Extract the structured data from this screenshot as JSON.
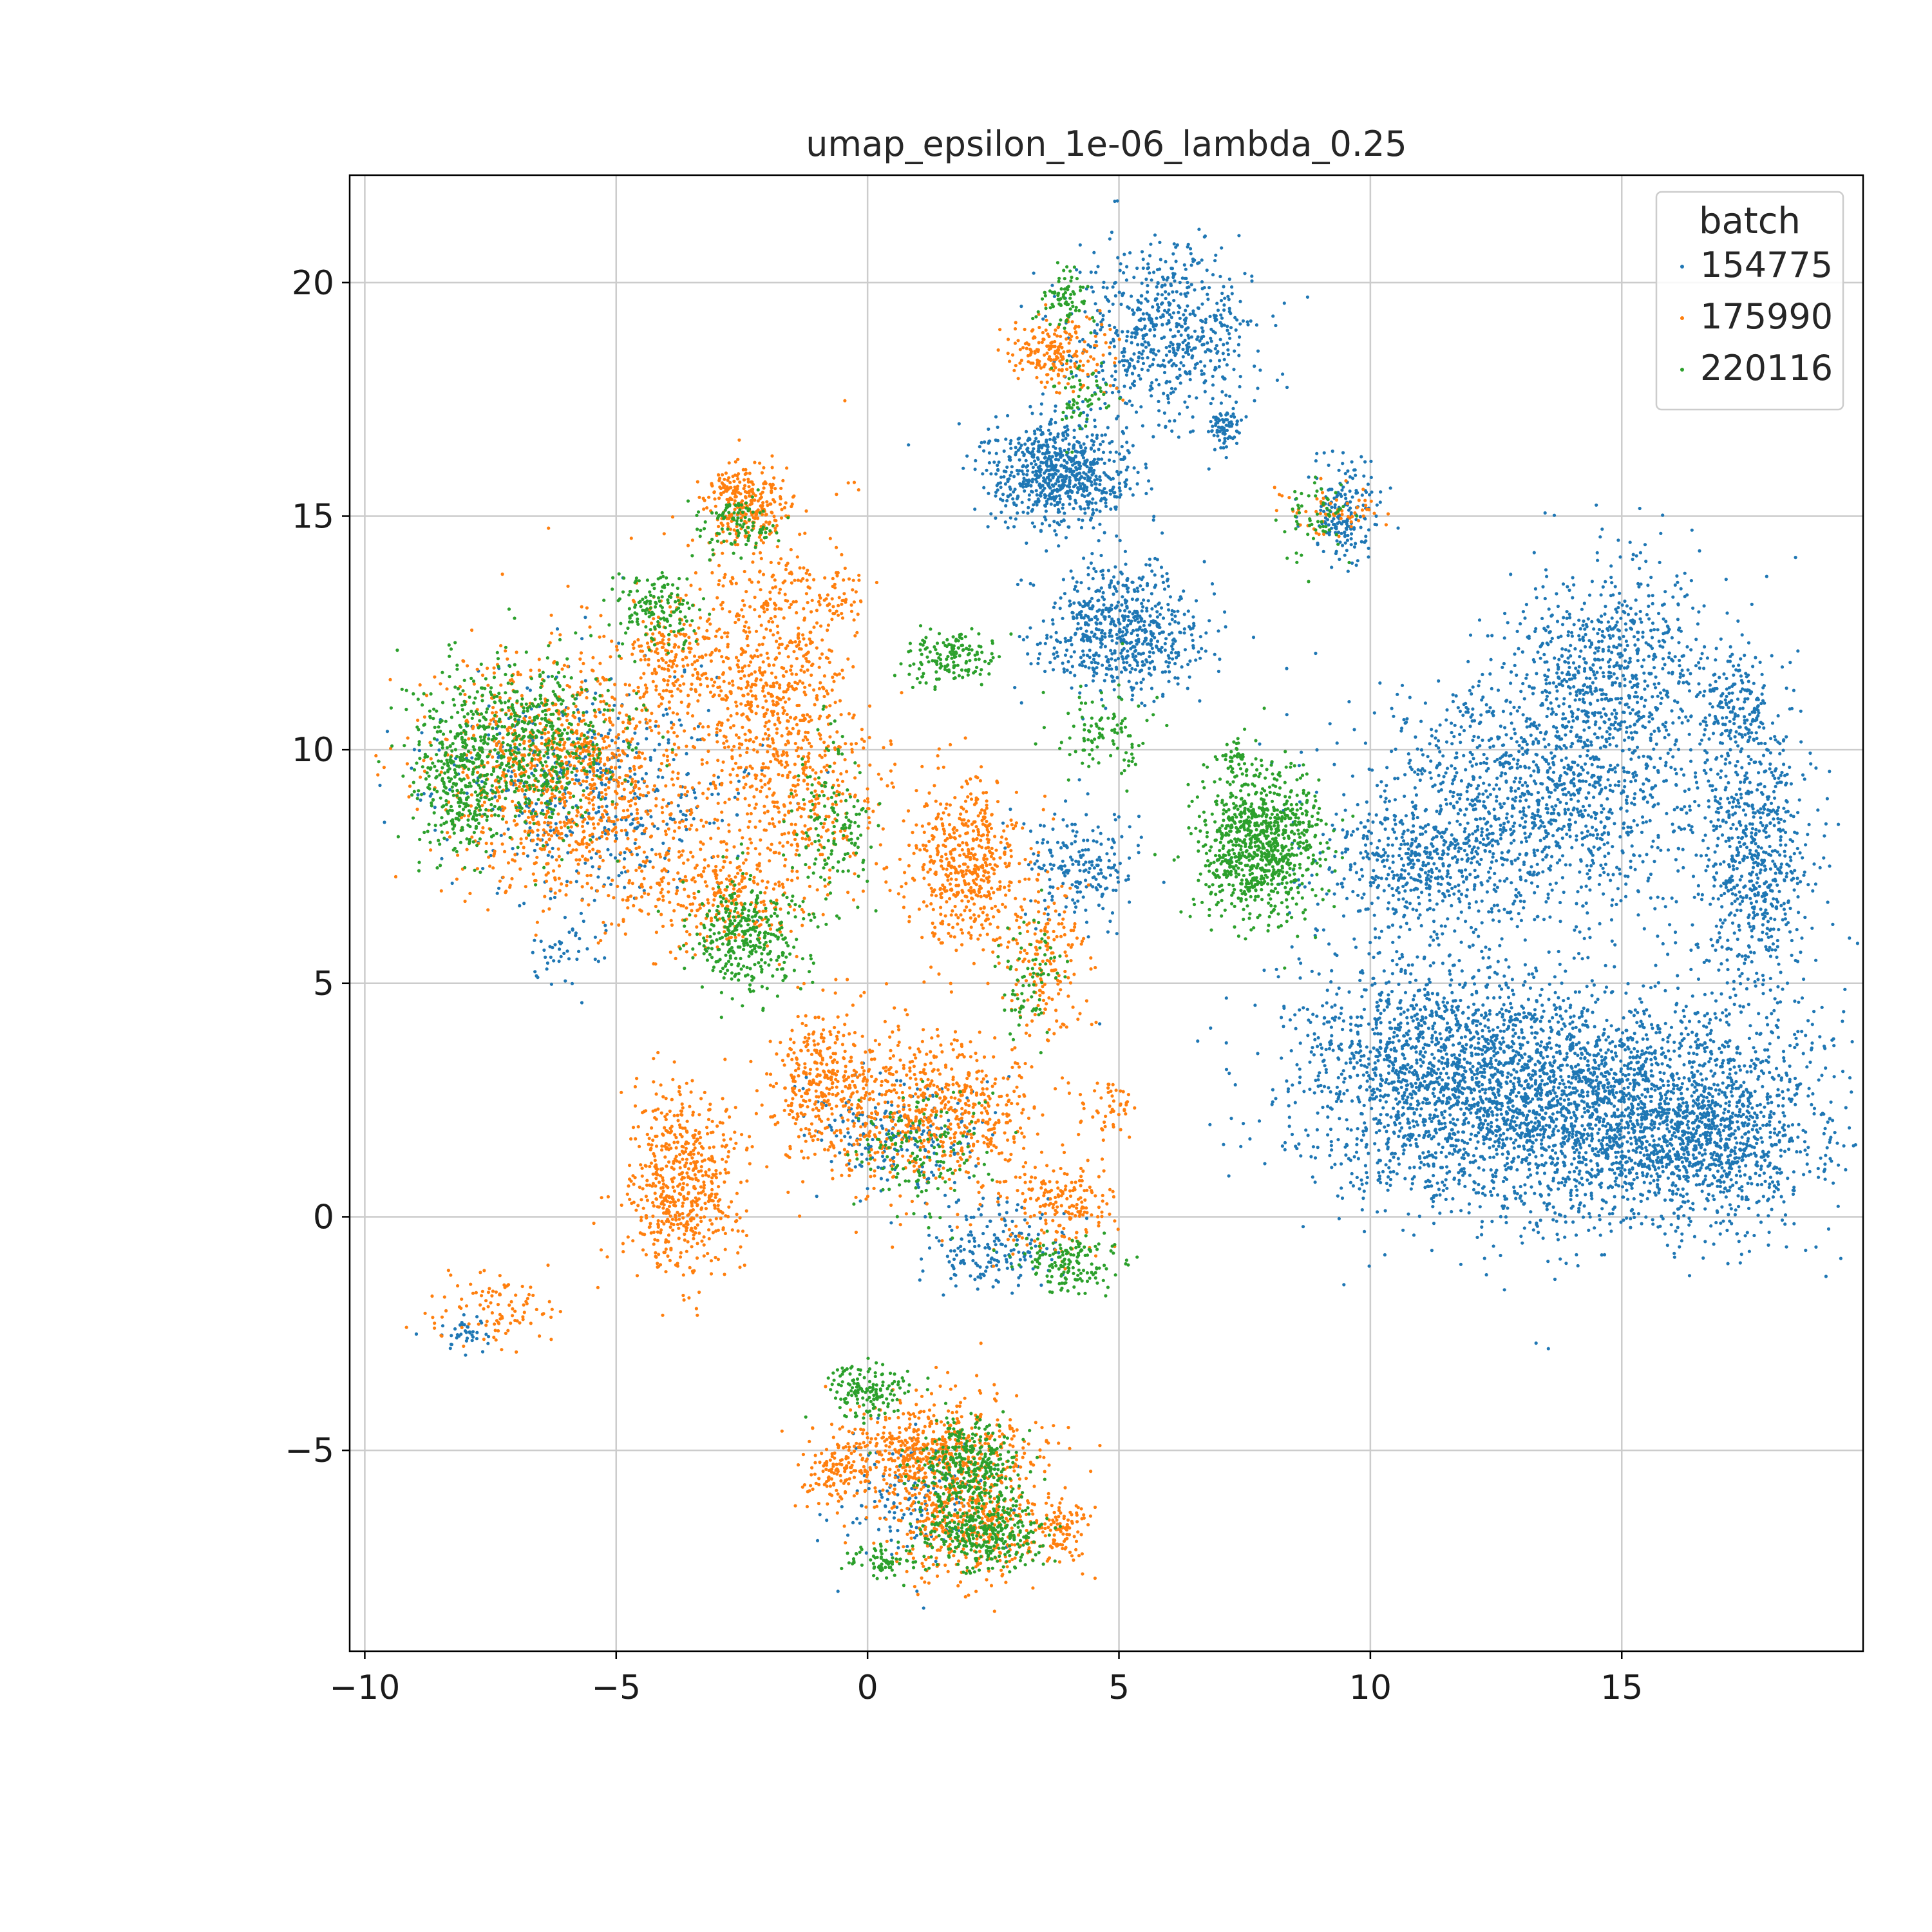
{
  "chart_data": {
    "type": "scatter",
    "title": "umap_epsilon_1e-06_lambda_0.25",
    "xlabel": "",
    "ylabel": "",
    "xlim": [
      -10.3,
      19.8
    ],
    "ylim": [
      -9.3,
      22.3
    ],
    "x_ticks": [
      -10,
      -5,
      0,
      5,
      10,
      15
    ],
    "x_tick_labels": [
      "−10",
      "−5",
      "0",
      "5",
      "10",
      "15"
    ],
    "y_ticks": [
      -5,
      0,
      5,
      10,
      15,
      20
    ],
    "y_tick_labels": [
      "−5",
      "0",
      "5",
      "10",
      "15",
      "20"
    ],
    "grid": true,
    "legend": {
      "title": "batch",
      "placement": "top-right"
    },
    "series": [
      {
        "name": "154775",
        "color": "#1f77b4",
        "clusters": [
          {
            "cx": 14.2,
            "cy": 2.3,
            "sx": 2.4,
            "sy": 1.25,
            "n": 3200
          },
          {
            "cx": 11.2,
            "cy": 3.6,
            "sx": 1.3,
            "sy": 1.2,
            "n": 900
          },
          {
            "cx": 16.7,
            "cy": 1.6,
            "sx": 0.9,
            "sy": 0.8,
            "n": 500
          },
          {
            "cx": 13.2,
            "cy": 8.9,
            "sx": 1.8,
            "sy": 1.3,
            "n": 1300
          },
          {
            "cx": 14.6,
            "cy": 11.8,
            "sx": 1.0,
            "sy": 1.1,
            "n": 700
          },
          {
            "cx": 10.9,
            "cy": 7.5,
            "sx": 0.9,
            "sy": 0.6,
            "n": 350
          },
          {
            "cx": 17.6,
            "cy": 7.8,
            "sx": 0.55,
            "sy": 1.6,
            "n": 700
          },
          {
            "cx": 17.3,
            "cy": 11.1,
            "sx": 0.4,
            "sy": 0.5,
            "n": 130
          },
          {
            "cx": 3.8,
            "cy": 15.9,
            "sx": 0.7,
            "sy": 0.55,
            "n": 750
          },
          {
            "cx": 5.0,
            "cy": 12.6,
            "sx": 0.8,
            "sy": 0.7,
            "n": 650
          },
          {
            "cx": 5.9,
            "cy": 18.9,
            "sx": 0.9,
            "sy": 0.9,
            "n": 650
          },
          {
            "cx": 7.1,
            "cy": 16.9,
            "sx": 0.15,
            "sy": 0.25,
            "n": 80
          },
          {
            "cx": 9.5,
            "cy": 15.2,
            "sx": 0.35,
            "sy": 0.6,
            "n": 180
          },
          {
            "cx": 4.2,
            "cy": 7.5,
            "sx": 0.55,
            "sy": 0.6,
            "n": 200
          },
          {
            "cx": 2.5,
            "cy": -0.6,
            "sx": 0.7,
            "sy": 0.5,
            "n": 180
          },
          {
            "cx": 0.6,
            "cy": 1.8,
            "sx": 0.8,
            "sy": 0.6,
            "n": 200
          },
          {
            "cx": -5.5,
            "cy": 9.2,
            "sx": 1.5,
            "sy": 1.2,
            "n": 500
          },
          {
            "cx": 0.9,
            "cy": -6.1,
            "sx": 0.8,
            "sy": 0.7,
            "n": 150
          },
          {
            "cx": -8.0,
            "cy": -2.4,
            "sx": 0.25,
            "sy": 0.2,
            "n": 40
          },
          {
            "cx": -6.0,
            "cy": 5.6,
            "sx": 0.4,
            "sy": 0.3,
            "n": 40
          }
        ]
      },
      {
        "name": "175990",
        "color": "#ff7f0e",
        "clusters": [
          {
            "cx": -6.0,
            "cy": 9.5,
            "sx": 1.2,
            "sy": 1.3,
            "n": 1100
          },
          {
            "cx": -3.7,
            "cy": 0.7,
            "sx": 0.6,
            "sy": 1.0,
            "n": 600
          },
          {
            "cx": 1.9,
            "cy": 7.6,
            "sx": 0.55,
            "sy": 0.9,
            "n": 500
          },
          {
            "cx": -2.0,
            "cy": 11.5,
            "sx": 0.9,
            "sy": 1.6,
            "n": 800
          },
          {
            "cx": -2.4,
            "cy": 15.3,
            "sx": 0.4,
            "sy": 0.4,
            "n": 250
          },
          {
            "cx": -3.9,
            "cy": 11.9,
            "sx": 0.4,
            "sy": 0.5,
            "n": 150
          },
          {
            "cx": -3.0,
            "cy": 7.0,
            "sx": 0.9,
            "sy": 0.7,
            "n": 350
          },
          {
            "cx": 0.5,
            "cy": 2.3,
            "sx": 1.0,
            "sy": 0.9,
            "n": 450
          },
          {
            "cx": -1.0,
            "cy": 3.0,
            "sx": 0.5,
            "sy": 0.8,
            "n": 250
          },
          {
            "cx": 2.0,
            "cy": 2.3,
            "sx": 0.6,
            "sy": 0.8,
            "n": 250
          },
          {
            "cx": 1.3,
            "cy": -5.0,
            "sx": 1.0,
            "sy": 0.6,
            "n": 600
          },
          {
            "cx": 2.0,
            "cy": -6.6,
            "sx": 0.8,
            "sy": 0.6,
            "n": 400
          },
          {
            "cx": -0.6,
            "cy": -5.5,
            "sx": 0.3,
            "sy": 0.3,
            "n": 100
          },
          {
            "cx": 3.9,
            "cy": -6.7,
            "sx": 0.25,
            "sy": 0.3,
            "n": 100
          },
          {
            "cx": 3.5,
            "cy": 5.5,
            "sx": 0.5,
            "sy": 1.0,
            "n": 200
          },
          {
            "cx": 3.8,
            "cy": 0.2,
            "sx": 0.6,
            "sy": 0.5,
            "n": 200
          },
          {
            "cx": 3.7,
            "cy": 18.5,
            "sx": 0.5,
            "sy": 0.4,
            "n": 200
          },
          {
            "cx": -7.5,
            "cy": -2.0,
            "sx": 0.6,
            "sy": 0.4,
            "n": 100
          },
          {
            "cx": -0.5,
            "cy": 13.4,
            "sx": 0.2,
            "sy": 0.3,
            "n": 40
          },
          {
            "cx": 4.8,
            "cy": 2.4,
            "sx": 0.3,
            "sy": 0.3,
            "n": 50
          },
          {
            "cx": 9.3,
            "cy": 15.1,
            "sx": 0.5,
            "sy": 0.25,
            "n": 60
          },
          {
            "cx": -1.0,
            "cy": 9.0,
            "sx": 0.8,
            "sy": 0.9,
            "n": 200
          }
        ]
      },
      {
        "name": "220116",
        "color": "#2ca02c",
        "clusters": [
          {
            "cx": 7.8,
            "cy": 8.0,
            "sx": 0.6,
            "sy": 0.8,
            "n": 900
          },
          {
            "cx": -6.9,
            "cy": 10.1,
            "sx": 1.0,
            "sy": 1.0,
            "n": 650
          },
          {
            "cx": -8.1,
            "cy": 9.2,
            "sx": 0.4,
            "sy": 0.7,
            "n": 250
          },
          {
            "cx": -2.4,
            "cy": 6.0,
            "sx": 0.6,
            "sy": 0.6,
            "n": 350
          },
          {
            "cx": -4.2,
            "cy": 13.0,
            "sx": 0.4,
            "sy": 0.4,
            "n": 150
          },
          {
            "cx": 1.7,
            "cy": 12.0,
            "sx": 0.45,
            "sy": 0.3,
            "n": 150
          },
          {
            "cx": 2.0,
            "cy": -5.3,
            "sx": 0.5,
            "sy": 0.5,
            "n": 350
          },
          {
            "cx": 2.3,
            "cy": -6.8,
            "sx": 0.6,
            "sy": 0.4,
            "n": 350
          },
          {
            "cx": 0.0,
            "cy": -3.7,
            "sx": 0.35,
            "sy": 0.3,
            "n": 150
          },
          {
            "cx": 0.3,
            "cy": -7.4,
            "sx": 0.3,
            "sy": 0.2,
            "n": 70
          },
          {
            "cx": 1.0,
            "cy": 1.5,
            "sx": 0.7,
            "sy": 0.6,
            "n": 150
          },
          {
            "cx": 4.0,
            "cy": -1.0,
            "sx": 0.5,
            "sy": 0.3,
            "n": 150
          },
          {
            "cx": -0.7,
            "cy": 8.3,
            "sx": 0.4,
            "sy": 0.9,
            "n": 150
          },
          {
            "cx": 4.7,
            "cy": 10.4,
            "sx": 0.5,
            "sy": 0.5,
            "n": 100
          },
          {
            "cx": 3.9,
            "cy": 19.6,
            "sx": 0.25,
            "sy": 0.3,
            "n": 80
          },
          {
            "cx": 4.3,
            "cy": 17.5,
            "sx": 0.3,
            "sy": 0.4,
            "n": 60
          },
          {
            "cx": 9.0,
            "cy": 15.0,
            "sx": 0.4,
            "sy": 0.4,
            "n": 60
          },
          {
            "cx": -2.6,
            "cy": 14.8,
            "sx": 0.4,
            "sy": 0.3,
            "n": 100
          },
          {
            "cx": 3.2,
            "cy": 5.0,
            "sx": 0.3,
            "sy": 0.6,
            "n": 80
          },
          {
            "cx": 7.3,
            "cy": 9.9,
            "sx": 0.1,
            "sy": 0.2,
            "n": 30
          }
        ]
      }
    ]
  }
}
